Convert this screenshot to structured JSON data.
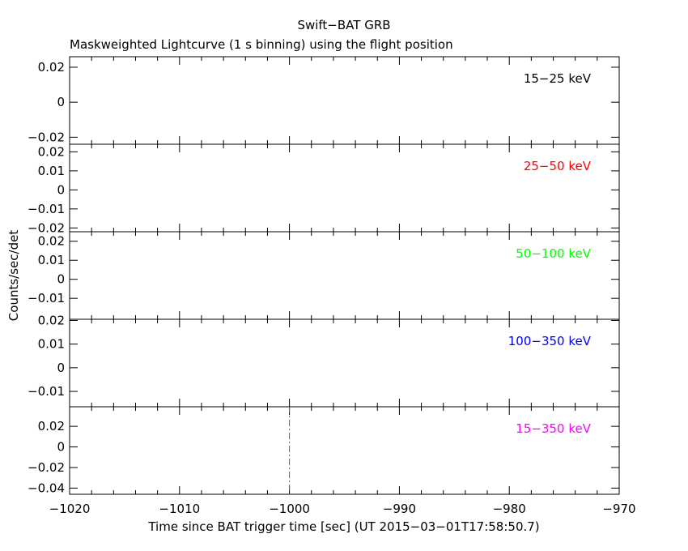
{
  "header": {
    "title": "Swift−BAT GRB",
    "subtitle": "Maskweighted Lightcurve (1 s binning) using the flight position"
  },
  "chart_data": {
    "type": "line",
    "title": "Swift−BAT GRB",
    "subtitle": "Maskweighted Lightcurve (1 s binning) using the flight position",
    "xlabel": "Time since BAT trigger time [sec] (UT 2015−03−01T17:58:50.7)",
    "ylabel": "Counts/sec/det",
    "xlim": [
      -1020,
      -970
    ],
    "x_ticks": [
      -1020,
      -1010,
      -1000,
      -990,
      -980,
      -970
    ],
    "x_tick_labels": [
      "−1020",
      "−1010",
      "−1000",
      "−990",
      "−980",
      "−970"
    ],
    "trigger_marker_x": -1000,
    "panels": [
      {
        "band": "15−25 keV",
        "color": "#000000",
        "ylim": [
          -0.024,
          0.026
        ],
        "yticks": [
          -0.02,
          0,
          0.02
        ],
        "ytick_labels": [
          "−0.02",
          "0",
          "0.02"
        ],
        "values": []
      },
      {
        "band": "25−50 keV",
        "color": "#ff0000",
        "ylim": [
          -0.022,
          0.024
        ],
        "yticks": [
          -0.02,
          -0.01,
          0,
          0.01,
          0.02
        ],
        "ytick_labels": [
          "−0.02",
          "−0.01",
          "0",
          "0.01",
          "0.02"
        ],
        "values": []
      },
      {
        "band": "50−100 keV",
        "color": "#00ff00",
        "ylim": [
          -0.021,
          0.025
        ],
        "yticks": [
          -0.01,
          0,
          0.01,
          0.02
        ],
        "ytick_labels": [
          "−0.01",
          "0",
          "0.01",
          "0.02"
        ],
        "values": []
      },
      {
        "band": "100−350 keV",
        "color": "#0000ff",
        "ylim": [
          -0.0165,
          0.0205
        ],
        "yticks": [
          -0.01,
          0,
          0.01,
          0.02
        ],
        "ytick_labels": [
          "−0.01",
          "0",
          "0.01",
          "0.02"
        ],
        "values": []
      },
      {
        "band": "15−350 keV",
        "color": "#ff00ff",
        "ylim": [
          -0.046,
          0.039
        ],
        "yticks": [
          -0.04,
          -0.02,
          0,
          0.02
        ],
        "ytick_labels": [
          "−0.04",
          "−0.02",
          "0",
          "0.02"
        ],
        "values": []
      }
    ]
  }
}
